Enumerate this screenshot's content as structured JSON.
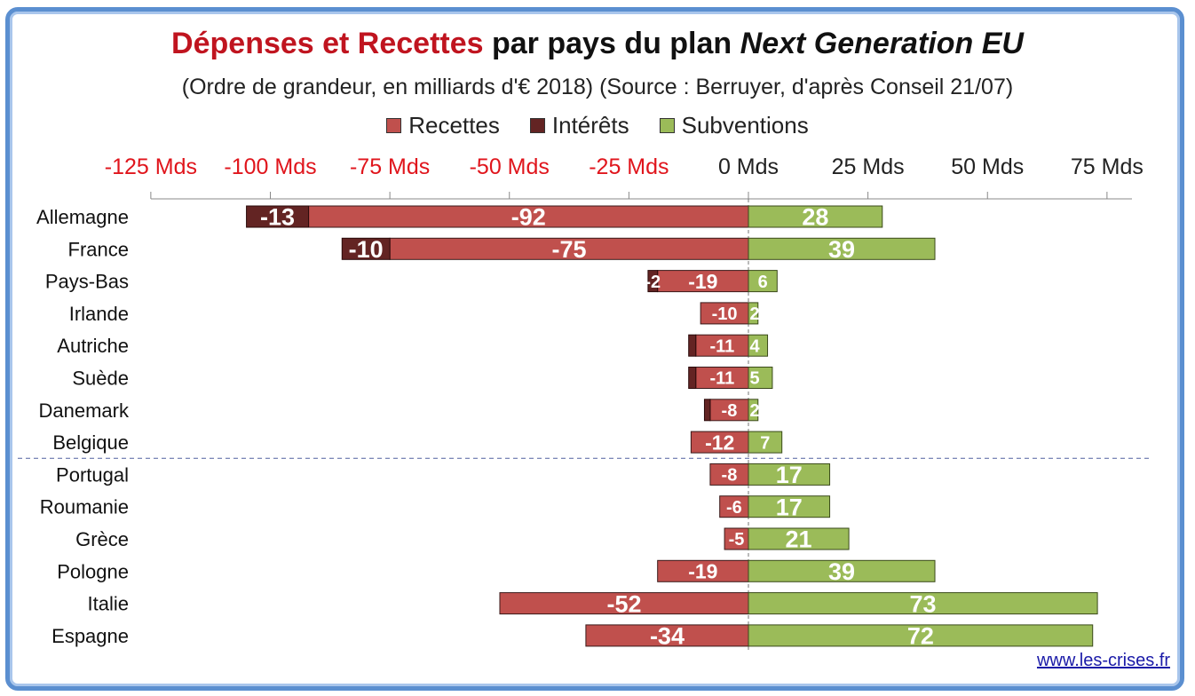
{
  "title": {
    "red": "Dépenses et Recettes",
    "mid": " par pays du plan ",
    "italic": "Next Generation EU"
  },
  "subtitle": "(Ordre de grandeur, en milliards d'€ 2018) (Source : Berruyer, d'après Conseil 21/07)",
  "legend": [
    {
      "label": "Recettes",
      "color": "#c0504d"
    },
    {
      "label": "Intérêts",
      "color": "#632423"
    },
    {
      "label": "Subventions",
      "color": "#9bbb59"
    }
  ],
  "credit": "www.les-crises.fr",
  "chart_data": {
    "type": "bar",
    "orientation": "horizontal",
    "stacked": true,
    "xlim": [
      -125,
      75
    ],
    "x_ticks": [
      -125,
      -100,
      -75,
      -50,
      -25,
      0,
      25,
      50,
      75
    ],
    "x_tick_labels": [
      "-125 Mds",
      "-100 Mds",
      "-75 Mds",
      "-50 Mds",
      "-25 Mds",
      "0 Mds",
      "25 Mds",
      "50 Mds",
      "75 Mds"
    ],
    "categories": [
      "Allemagne",
      "France",
      "Pays-Bas",
      "Irlande",
      "Autriche",
      "Suède",
      "Danemark",
      "Belgique",
      "Portugal",
      "Roumanie",
      "Grèce",
      "Pologne",
      "Italie",
      "Espagne"
    ],
    "separator_after": "Belgique",
    "series": [
      {
        "name": "Recettes",
        "color": "#c0504d",
        "values": [
          -92,
          -75,
          -19,
          -10,
          -11,
          -11,
          -8,
          -12,
          -8,
          -6,
          -5,
          -19,
          -52,
          -34
        ],
        "labels": [
          "-92",
          "-75",
          "-19",
          "-10",
          "-11",
          "-11",
          "-8",
          "-12",
          "-8",
          "-6",
          "-5",
          "-19",
          "-52",
          "-34"
        ]
      },
      {
        "name": "Intérêts",
        "color": "#632423",
        "values": [
          -13,
          -10,
          -2,
          0,
          -1.5,
          -1.5,
          -1.2,
          0,
          0,
          0,
          0,
          0,
          0,
          0
        ],
        "labels": [
          "-13",
          "-10",
          "-2",
          "",
          "",
          "",
          "",
          "",
          "",
          "",
          "",
          "",
          "",
          ""
        ]
      },
      {
        "name": "Subventions",
        "color": "#9bbb59",
        "values": [
          28,
          39,
          6,
          2,
          4,
          5,
          2,
          7,
          17,
          17,
          21,
          39,
          73,
          72
        ],
        "labels": [
          "28",
          "39",
          "6",
          "2",
          "4",
          "5",
          "2",
          "7",
          "17",
          "17",
          "21",
          "39",
          "73",
          "72"
        ]
      }
    ]
  }
}
